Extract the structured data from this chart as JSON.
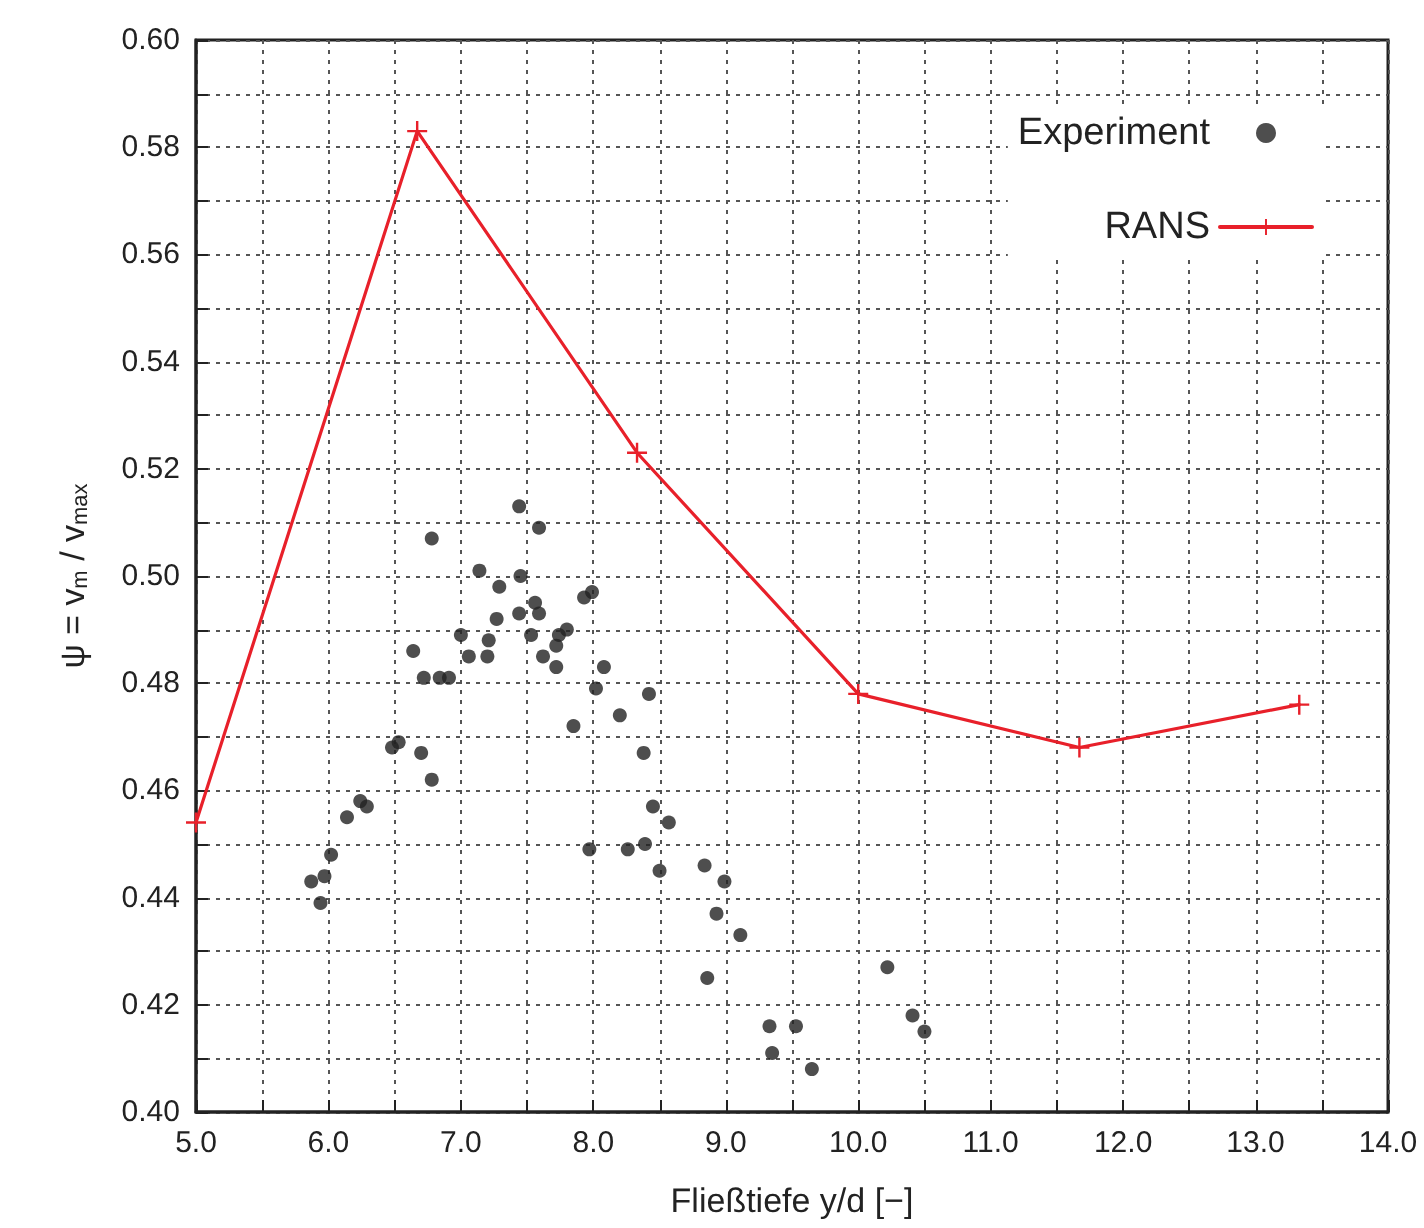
{
  "chart_data": {
    "type": "scatter",
    "xlabel": "Fließtiefe y/d [−]",
    "ylabel": "ψ = v$_{m}$ / v$_{max}$",
    "xlim": [
      5,
      14
    ],
    "xticks": [
      {
        "value": 5,
        "label": "5.0"
      },
      {
        "value": 5.5,
        "label": null
      },
      {
        "value": 6,
        "label": "6.0"
      },
      {
        "value": 6.5,
        "label": null
      },
      {
        "value": 7,
        "label": "7.0"
      },
      {
        "value": 7.5,
        "label": null
      },
      {
        "value": 8,
        "label": "8.0"
      },
      {
        "value": 8.5,
        "label": null
      },
      {
        "value": 9,
        "label": "9.0"
      },
      {
        "value": 9.5,
        "label": null
      },
      {
        "value": 10,
        "label": "10.0"
      },
      {
        "value": 10.5,
        "label": null
      },
      {
        "value": 11,
        "label": "11.0"
      },
      {
        "value": 11.5,
        "label": null
      },
      {
        "value": 12,
        "label": "12.0"
      },
      {
        "value": 12.5,
        "label": null
      },
      {
        "value": 13,
        "label": "13.0"
      },
      {
        "value": 13.5,
        "label": null
      },
      {
        "value": 14,
        "label": "14.0"
      }
    ],
    "ylim": [
      0.4,
      0.6
    ],
    "yticks": [
      {
        "value": 0.4,
        "label": "0.40"
      },
      {
        "value": 0.41,
        "label": null
      },
      {
        "value": 0.42,
        "label": "0.42"
      },
      {
        "value": 0.43,
        "label": null
      },
      {
        "value": 0.44,
        "label": "0.44"
      },
      {
        "value": 0.45,
        "label": null
      },
      {
        "value": 0.46,
        "label": "0.46"
      },
      {
        "value": 0.47,
        "label": null
      },
      {
        "value": 0.48,
        "label": "0.48"
      },
      {
        "value": 0.49,
        "label": null
      },
      {
        "value": 0.5,
        "label": "0.50"
      },
      {
        "value": 0.51,
        "label": null
      },
      {
        "value": 0.52,
        "label": "0.52"
      },
      {
        "value": 0.53,
        "label": null
      },
      {
        "value": 0.54,
        "label": "0.54"
      },
      {
        "value": 0.55,
        "label": null
      },
      {
        "value": 0.56,
        "label": "0.56"
      },
      {
        "value": 0.57,
        "label": null
      },
      {
        "value": 0.58,
        "label": "0.58"
      },
      {
        "value": 0.59,
        "label": null
      },
      {
        "value": 0.6,
        "label": "0.60"
      }
    ],
    "grid": true,
    "legend": "top right",
    "series": [
      {
        "name": "Experiment",
        "marker": "circle",
        "color": "#222222",
        "x": [
          7.44,
          7.59,
          6.78,
          7.14,
          7.29,
          7.45,
          7.56,
          7.99,
          7.93,
          7.27,
          7.44,
          7.59,
          7.0,
          7.21,
          7.53,
          7.74,
          7.8,
          7.72,
          6.64,
          7.06,
          7.2,
          7.62,
          7.72,
          8.08,
          6.72,
          6.84,
          6.91,
          8.02,
          7.85,
          6.48,
          6.53,
          6.7,
          6.78,
          6.14,
          6.24,
          6.29,
          6.02,
          5.97,
          5.87,
          5.94,
          7.97,
          8.42,
          8.2,
          8.38,
          8.45,
          8.57,
          8.26,
          8.39,
          8.5,
          8.84,
          8.99,
          8.93,
          9.11,
          8.86,
          10.22,
          9.33,
          9.53,
          9.35,
          9.65,
          10.41,
          10.5
        ],
        "values": [
          0.513,
          0.509,
          0.507,
          0.501,
          0.498,
          0.5,
          0.495,
          0.497,
          0.496,
          0.492,
          0.493,
          0.493,
          0.489,
          0.488,
          0.489,
          0.489,
          0.49,
          0.487,
          0.486,
          0.485,
          0.485,
          0.485,
          0.483,
          0.483,
          0.481,
          0.481,
          0.481,
          0.479,
          0.472,
          0.468,
          0.469,
          0.467,
          0.462,
          0.455,
          0.458,
          0.457,
          0.448,
          0.444,
          0.443,
          0.439,
          0.449,
          0.478,
          0.474,
          0.467,
          0.457,
          0.454,
          0.449,
          0.45,
          0.445,
          0.446,
          0.443,
          0.437,
          0.433,
          0.425,
          0.427,
          0.416,
          0.416,
          0.411,
          0.408,
          0.418,
          0.415
        ]
      },
      {
        "name": "RANS",
        "type": "line",
        "marker": "cross",
        "color": "#e8202a",
        "line_style": "solid",
        "x": [
          5.0,
          6.67,
          8.33,
          10.0,
          11.67,
          13.33
        ],
        "values": [
          0.454,
          0.583,
          0.523,
          0.478,
          0.468,
          0.476
        ]
      }
    ]
  }
}
